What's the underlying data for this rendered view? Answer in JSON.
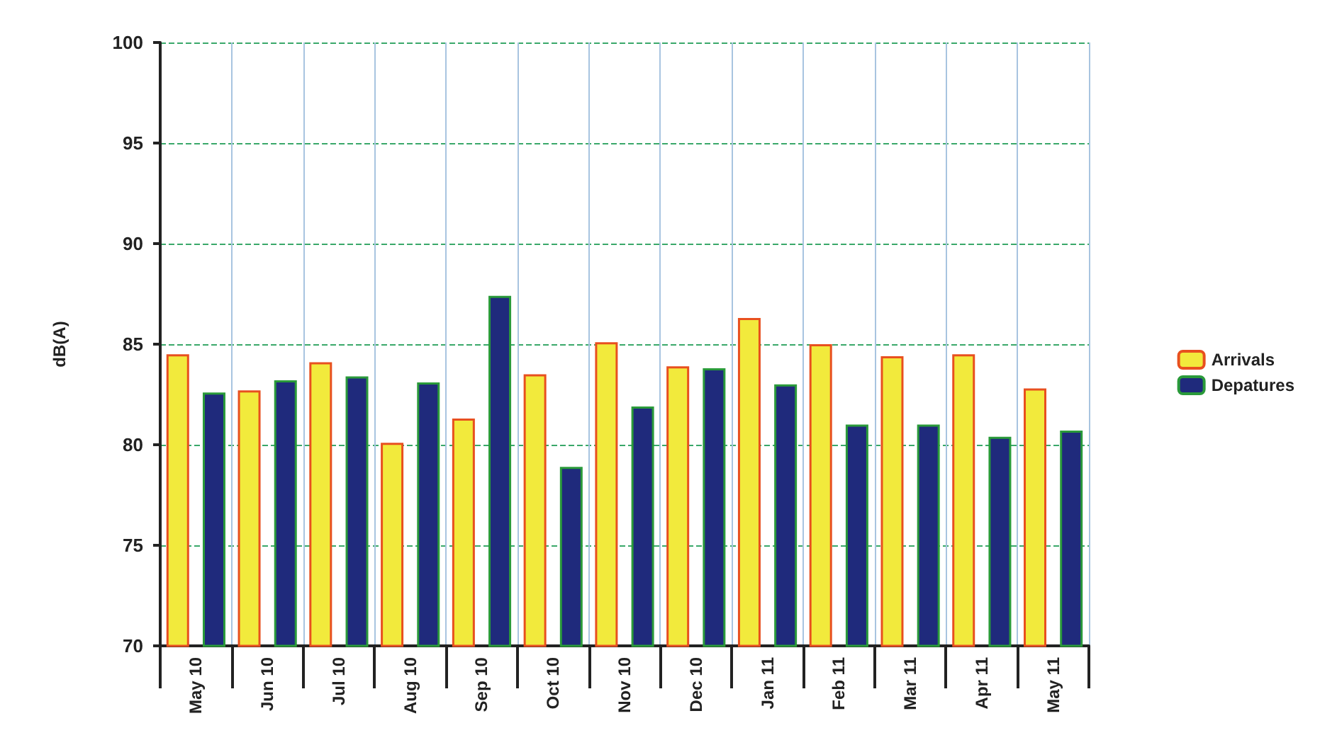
{
  "chart_data": {
    "type": "bar",
    "ylabel": "dB(A)",
    "categories": [
      "May 10",
      "Jun 10",
      "Jul 10",
      "Aug 10",
      "Sep 10",
      "Oct 10",
      "Nov 10",
      "Dec 10",
      "Jan 11",
      "Feb 11",
      "Mar 11",
      "Apr 11",
      "May 11"
    ],
    "series": [
      {
        "name": "Arrivals",
        "color": "#f2ea3c",
        "values": [
          84.5,
          82.7,
          84.1,
          80.1,
          81.3,
          83.5,
          85.1,
          83.9,
          86.3,
          85.0,
          84.4,
          84.5,
          82.8
        ]
      },
      {
        "name": "Depatures",
        "color": "#1f2a7c",
        "values": [
          82.6,
          83.2,
          83.4,
          83.1,
          87.4,
          78.9,
          81.9,
          83.8,
          83.0,
          81.0,
          81.0,
          80.4,
          80.7
        ]
      }
    ],
    "ylim": [
      70,
      100
    ],
    "yticks": [
      70,
      75,
      80,
      85,
      90,
      95,
      100
    ],
    "grid": true,
    "legend": "right"
  }
}
